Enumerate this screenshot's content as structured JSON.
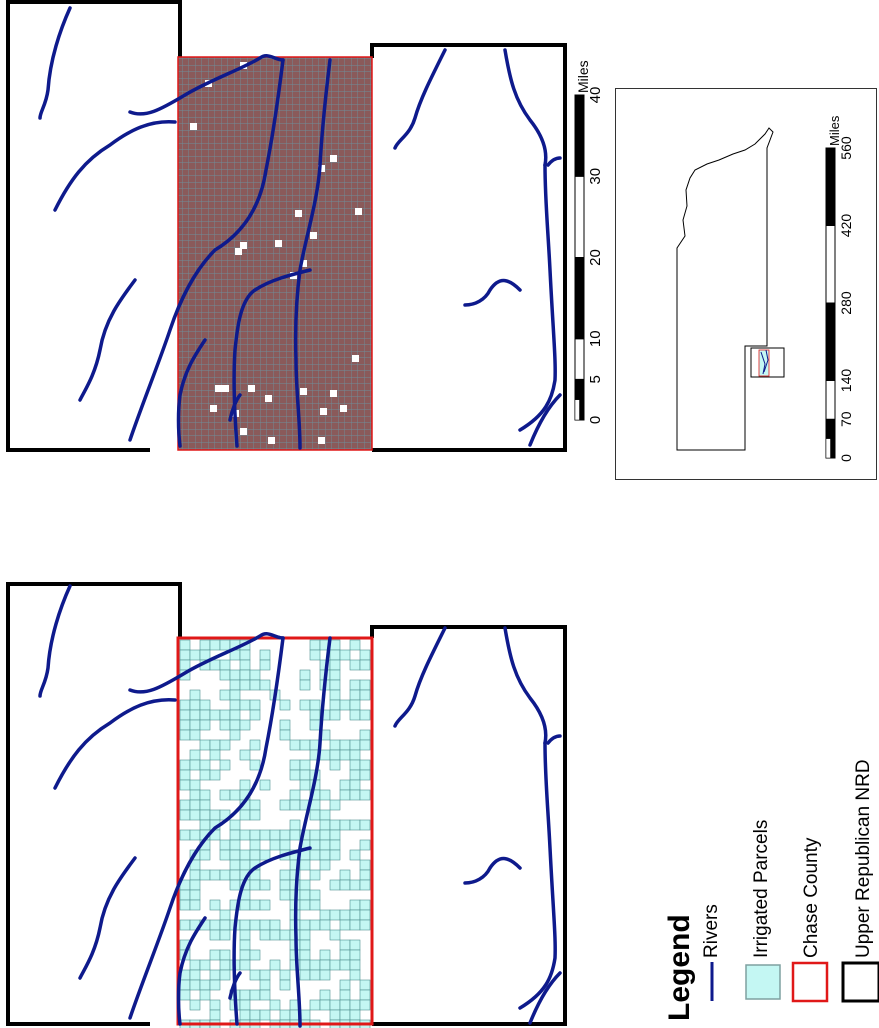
{
  "colors": {
    "river": "#0e1a8c",
    "county_border": "#e01818",
    "nrd_border": "#000000",
    "coverage_fill": "#8a5a5a",
    "coverage_grid": "#6f8f9a",
    "irrigated_fill": "#c4f7f3",
    "irrigated_stroke": "#4f8f8f"
  },
  "scale_main": {
    "unit": "Miles",
    "ticks": [
      "0",
      "5",
      "10",
      "20",
      "30",
      "40"
    ],
    "tick_values": [
      0,
      5,
      10,
      20,
      30,
      40
    ]
  },
  "scale_inset": {
    "unit": "Miles",
    "ticks": [
      "0",
      "70",
      "140",
      "280",
      "420",
      "560"
    ],
    "tick_values": [
      0,
      70,
      140,
      280,
      420,
      560
    ]
  },
  "legend": {
    "title": "Legend",
    "items": [
      {
        "label": "Rivers",
        "symbol": "line-icon"
      },
      {
        "label": "Irrigated Parcels",
        "symbol": "fill-icon"
      },
      {
        "label": "Chase County",
        "symbol": "red-outline-icon"
      },
      {
        "label": "Upper Republican NRD",
        "symbol": "black-outline-icon"
      }
    ]
  }
}
